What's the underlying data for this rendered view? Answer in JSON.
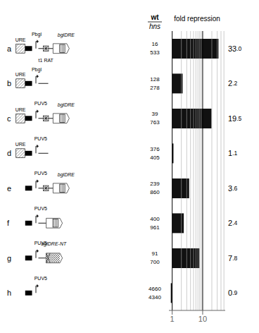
{
  "chart_data": {
    "type": "bar",
    "orientation": "horizontal",
    "title": "fold repression",
    "categories": [
      "a",
      "b",
      "c",
      "d",
      "e",
      "f",
      "g",
      "h"
    ],
    "values": [
      33.0,
      2.2,
      19.5,
      1.1,
      3.6,
      2.4,
      7.8,
      0.9
    ],
    "value_labels": [
      "33.0",
      "2.2",
      "19.5",
      "1.1",
      "3.6",
      "2.4",
      "7.8",
      "0.9"
    ],
    "data_labels": true,
    "color": "#111111",
    "log": "x",
    "xlim": [
      0.78,
      55
    ],
    "xticks": [
      1,
      10
    ],
    "grid": true,
    "table": {
      "columns": [
        {
          "name": "wt",
          "values": [
            16,
            128,
            39,
            376,
            239,
            400,
            91,
            4660
          ]
        },
        {
          "name": "hns",
          "values": [
            533,
            278,
            763,
            405,
            860,
            961,
            700,
            4340
          ]
        }
      ]
    },
    "annotations": [
      [
        "URE",
        "Pbgl",
        "bglDRE",
        "t1 RAT"
      ],
      [
        "URE",
        "Pbgl"
      ],
      [
        "URE",
        "PUV5",
        "bglDRE"
      ],
      [
        "URE",
        "PUV5"
      ],
      [
        "PUV5",
        "bglDRE"
      ],
      [
        "PUV5"
      ],
      [
        "PUV5",
        "bglDRE-NT"
      ],
      [
        "PUV5"
      ]
    ]
  }
}
